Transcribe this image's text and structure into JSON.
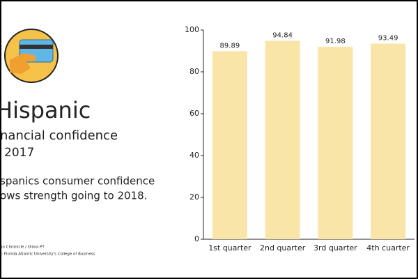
{
  "panel": {
    "title": "Hispanic",
    "subtitle": "nancial confidence",
    "year": "2017",
    "description": [
      "spanics consumer confidence",
      "ows strength going to 2018."
    ],
    "credits": [
      "on Chronicle / Olivia PT",
      "r: Florida Atlantic University's College of Business"
    ]
  },
  "chart_data": {
    "type": "bar",
    "categories": [
      "1st quarter",
      "2nd quarter",
      "3rd quarter",
      "4th cuarter"
    ],
    "values": [
      89.89,
      94.84,
      91.98,
      93.49
    ],
    "color": "#fae5a9",
    "ylim": [
      0,
      100
    ],
    "yticks": [
      0,
      20,
      40,
      60,
      80,
      100
    ],
    "grid": false
  }
}
